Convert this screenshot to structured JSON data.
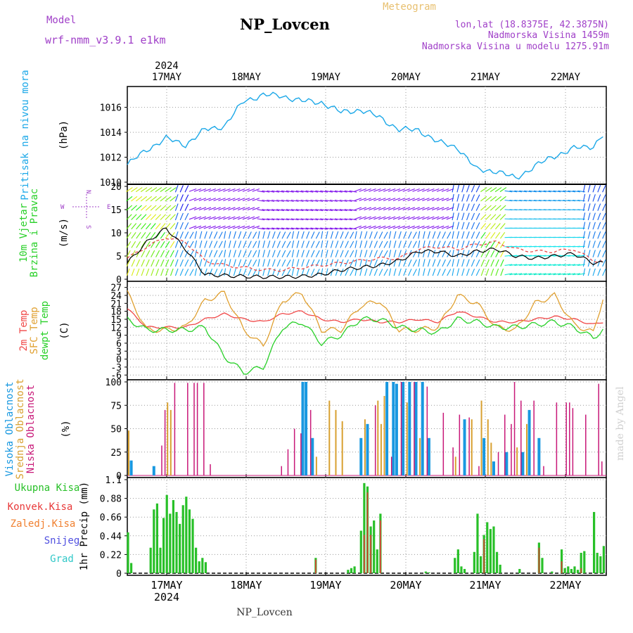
{
  "header": {
    "model_label": "Model",
    "model_name": "wrf-nmm_v3.9.1 e1km",
    "station": "NP_Lovcen",
    "meteogram_label": "Meteogram",
    "coords": "lon,lat (18.8375E, 42.3875N)",
    "altitude": "Nadmorska Visina 1459m",
    "model_altitude": "Nadmorska Visina u modelu 1275.91m",
    "signature": "made by Angel",
    "footer_station": "NP_Lovcen"
  },
  "colors": {
    "pressure": "#1ca8e8",
    "temp2m": "#f04848",
    "sfc": "#e0a030",
    "dewpt": "#28d028",
    "high_cloud": "#1898e0",
    "mid_cloud": "#d8a030",
    "low_cloud": "#c81878",
    "total_precip": "#28c028",
    "convective": "#e83838",
    "freezing": "#f08030",
    "snow": "#5050e0",
    "hail": "#30c8c8",
    "purple_text": "#a040c8"
  },
  "time_axis": {
    "days": [
      "17MAY",
      "18MAY",
      "19MAY",
      "20MAY",
      "21MAY",
      "22MAY"
    ],
    "year": "2024"
  },
  "chart_data": [
    {
      "type": "line",
      "name": "pressure",
      "ylabel_left": "Pritisak na nivou mora",
      "unit": "(hPa)",
      "ylim": [
        1010,
        1017.5
      ],
      "yticks": [
        "1010",
        "1012",
        "1014",
        "1016"
      ],
      "x_hours": [
        0,
        6,
        12,
        18,
        24,
        30,
        36,
        42,
        48,
        54,
        60,
        66,
        72,
        78,
        84,
        90,
        96,
        102,
        108,
        114,
        120,
        126,
        132,
        138,
        144,
        147
      ],
      "values": [
        1011.4,
        1012.6,
        1013.5,
        1013.0,
        1014.2,
        1014.5,
        1016.5,
        1017.0,
        1016.9,
        1016.5,
        1016.4,
        1015.6,
        1015.8,
        1015.2,
        1014.2,
        1014.2,
        1013.2,
        1012.8,
        1011.0,
        1010.9,
        1010.3,
        1011.3,
        1012.1,
        1012.7,
        1012.9,
        1013.8
      ]
    },
    {
      "type": "line",
      "name": "wind",
      "ylabel_left": [
        "10m Vjetar",
        "Brzina i Pravac"
      ],
      "unit": "(m/s)",
      "ylim": [
        0,
        20
      ],
      "yticks": [
        "0",
        "5",
        "10",
        "15",
        "20"
      ],
      "rose": [
        "N",
        "E",
        "S",
        "W"
      ],
      "x_hours": [
        0,
        6,
        12,
        18,
        24,
        30,
        36,
        42,
        48,
        54,
        60,
        66,
        72,
        78,
        84,
        90,
        96,
        102,
        108,
        114,
        120,
        126,
        132,
        138,
        144,
        147
      ],
      "speed": [
        3.5,
        8.0,
        11.0,
        6.5,
        1.0,
        0.8,
        0.6,
        0.5,
        0.5,
        0.6,
        1.0,
        2.0,
        2.5,
        3.0,
        4.0,
        6.0,
        6.0,
        5.0,
        6.0,
        6.5,
        5.0,
        4.5,
        5.0,
        5.5,
        3.5,
        3.5
      ],
      "gust": [
        4.5,
        7.0,
        9.0,
        8.0,
        4.0,
        3.0,
        2.5,
        2.0,
        2.0,
        2.5,
        3.0,
        3.5,
        4.0,
        4.5,
        4.5,
        6.5,
        7.0,
        6.5,
        7.5,
        8.0,
        6.5,
        6.0,
        6.0,
        6.5,
        4.0,
        4.0
      ]
    },
    {
      "type": "line",
      "name": "temperature",
      "ylabel_left": [
        "2m Temp",
        "SFC Temp",
        "dewpt Temp"
      ],
      "unit": "(C)",
      "ylim": [
        -7,
        28.5
      ],
      "yticks": [
        "-6",
        "-3",
        "0",
        "3",
        "6",
        "9",
        "12",
        "15",
        "18",
        "21",
        "24",
        "27"
      ],
      "x_hours": [
        0,
        6,
        12,
        18,
        24,
        30,
        36,
        42,
        48,
        54,
        60,
        66,
        72,
        78,
        84,
        90,
        96,
        102,
        108,
        114,
        120,
        126,
        132,
        138,
        144,
        147
      ],
      "series": [
        {
          "name": "2m Temp",
          "values": [
            19,
            12,
            12,
            12,
            15,
            17,
            15,
            14,
            17,
            18,
            15,
            14,
            15,
            14,
            14,
            15,
            14,
            18,
            16,
            14,
            14,
            15,
            16,
            15,
            13,
            14
          ]
        },
        {
          "name": "SFC Temp",
          "values": [
            25,
            11,
            11,
            12,
            22,
            25,
            11,
            5,
            22,
            25,
            11,
            11,
            20,
            22,
            11,
            11,
            12,
            24,
            21,
            12,
            11,
            21,
            24,
            13,
            10,
            23
          ]
        },
        {
          "name": "dewpt Temp",
          "values": [
            15,
            11,
            11,
            11,
            12,
            1,
            -5,
            -3,
            12,
            14,
            6,
            9,
            15,
            15,
            12,
            11,
            10,
            15,
            14,
            12,
            12,
            13,
            14,
            12,
            8,
            11
          ]
        }
      ]
    },
    {
      "type": "bar",
      "name": "clouds",
      "ylabel_left": [
        "Visoka Oblacnost",
        "Srednja Oblacnost",
        "Niska Oblacnost"
      ],
      "unit": "(%)",
      "ylim": [
        0,
        100
      ],
      "yticks": [
        "0",
        "25",
        "50",
        "75",
        "100"
      ],
      "series": [
        {
          "name": "Visoka Oblacnost",
          "bars": [
            [
              1,
              16
            ],
            [
              8,
              10
            ],
            [
              54,
              100
            ],
            [
              55,
              100
            ],
            [
              57,
              40
            ],
            [
              72,
              40
            ],
            [
              74,
              55
            ],
            [
              80,
              100
            ],
            [
              82,
              100
            ],
            [
              83,
              98
            ],
            [
              85,
              100
            ],
            [
              87,
              100
            ],
            [
              89,
              100
            ],
            [
              91,
              100
            ],
            [
              93,
              40
            ],
            [
              104,
              60
            ],
            [
              110,
              40
            ],
            [
              113,
              15
            ],
            [
              117,
              25
            ],
            [
              122,
              25
            ],
            [
              124,
              70
            ],
            [
              127,
              40
            ]
          ]
        },
        {
          "name": "Srednja Oblacnost",
          "bars": [
            [
              0,
              48
            ],
            [
              12,
              78
            ],
            [
              13,
              70
            ],
            [
              58,
              20
            ],
            [
              62,
              80
            ],
            [
              64,
              70
            ],
            [
              66,
              58
            ],
            [
              73,
              60
            ],
            [
              77,
              80
            ],
            [
              78,
              55
            ],
            [
              79,
              85
            ],
            [
              86,
              78
            ],
            [
              90,
              40
            ],
            [
              101,
              20
            ],
            [
              106,
              60
            ],
            [
              109,
              80
            ],
            [
              111,
              60
            ],
            [
              112,
              35
            ],
            [
              120,
              30
            ],
            [
              123,
              55
            ]
          ]
        },
        {
          "name": "Niska Oblacnost",
          "bars": [
            [
              10,
              32
            ],
            [
              11,
              70
            ],
            [
              14,
              99
            ],
            [
              18,
              99
            ],
            [
              20,
              99
            ],
            [
              21,
              99
            ],
            [
              23,
              99
            ],
            [
              25,
              12
            ],
            [
              47,
              10
            ],
            [
              49,
              28
            ],
            [
              51,
              50
            ],
            [
              53,
              45
            ],
            [
              56,
              70
            ],
            [
              76,
              75
            ],
            [
              81,
              20
            ],
            [
              84,
              100
            ],
            [
              88,
              100
            ],
            [
              92,
              95
            ],
            [
              97,
              67
            ],
            [
              100,
              30
            ],
            [
              102,
              65
            ],
            [
              105,
              62
            ],
            [
              108,
              10
            ],
            [
              114,
              25
            ],
            [
              116,
              65
            ],
            [
              118,
              55
            ],
            [
              119,
              100
            ],
            [
              121,
              80
            ],
            [
              125,
              80
            ],
            [
              128,
              10
            ],
            [
              132,
              78
            ],
            [
              135,
              78
            ],
            [
              136,
              78
            ],
            [
              137,
              72
            ],
            [
              141,
              65
            ],
            [
              145,
              98
            ],
            [
              146,
              15
            ]
          ]
        }
      ]
    },
    {
      "type": "bar",
      "name": "precipitation",
      "ylabel_left": [
        "Ukupna Kisa",
        "Konvek.Kisa",
        "Zaledj.Kisa",
        "Snijeg",
        "Grad"
      ],
      "unit": "1hr Precip (mm)",
      "ylim": [
        0,
        1.1
      ],
      "yticks": [
        "0",
        "0.22",
        "0.44",
        "0.66",
        "0.88",
        "1.1"
      ],
      "series": [
        {
          "name": "Ukupna Kisa",
          "bars": [
            [
              0,
              0.48
            ],
            [
              1,
              0.12
            ],
            [
              7,
              0.3
            ],
            [
              8,
              0.75
            ],
            [
              9,
              0.82
            ],
            [
              10,
              0.3
            ],
            [
              11,
              0.65
            ],
            [
              12,
              0.92
            ],
            [
              13,
              0.7
            ],
            [
              14,
              0.86
            ],
            [
              15,
              0.72
            ],
            [
              16,
              0.58
            ],
            [
              17,
              0.8
            ],
            [
              18,
              0.9
            ],
            [
              19,
              0.75
            ],
            [
              20,
              0.64
            ],
            [
              21,
              0.3
            ],
            [
              22,
              0.14
            ],
            [
              23,
              0.18
            ],
            [
              24,
              0.13
            ],
            [
              58,
              0.18
            ],
            [
              68,
              0.04
            ],
            [
              69,
              0.06
            ],
            [
              70,
              0.08
            ],
            [
              72,
              0.5
            ],
            [
              73,
              1.06
            ],
            [
              74,
              1.02
            ],
            [
              75,
              0.55
            ],
            [
              76,
              0.62
            ],
            [
              77,
              0.28
            ],
            [
              78,
              0.7
            ],
            [
              92,
              0.02
            ],
            [
              93,
              0.01
            ],
            [
              101,
              0.18
            ],
            [
              102,
              0.28
            ],
            [
              103,
              0.08
            ],
            [
              104,
              0.05
            ],
            [
              107,
              0.25
            ],
            [
              108,
              0.7
            ],
            [
              109,
              0.2
            ],
            [
              110,
              0.45
            ],
            [
              111,
              0.6
            ],
            [
              112,
              0.52
            ],
            [
              113,
              0.55
            ],
            [
              114,
              0.25
            ],
            [
              115,
              0.1
            ],
            [
              121,
              0.05
            ],
            [
              127,
              0.36
            ],
            [
              128,
              0.18
            ],
            [
              131,
              0.02
            ],
            [
              134,
              0.28
            ],
            [
              135,
              0.06
            ],
            [
              136,
              0.08
            ],
            [
              137,
              0.05
            ],
            [
              138,
              0.08
            ],
            [
              139,
              0.04
            ],
            [
              140,
              0.24
            ],
            [
              141,
              0.26
            ],
            [
              144,
              0.72
            ],
            [
              145,
              0.24
            ],
            [
              146,
              0.2
            ],
            [
              147,
              0.32
            ]
          ]
        },
        {
          "name": "Konvek.Kisa",
          "bars": [
            [
              58,
              0.16
            ],
            [
              73,
              0.45
            ],
            [
              74,
              0.95
            ],
            [
              75,
              0.45
            ],
            [
              78,
              0.62
            ],
            [
              110,
              0.4
            ],
            [
              127,
              0.3
            ],
            [
              134,
              0.14
            ],
            [
              140,
              0.06
            ]
          ]
        }
      ]
    }
  ]
}
